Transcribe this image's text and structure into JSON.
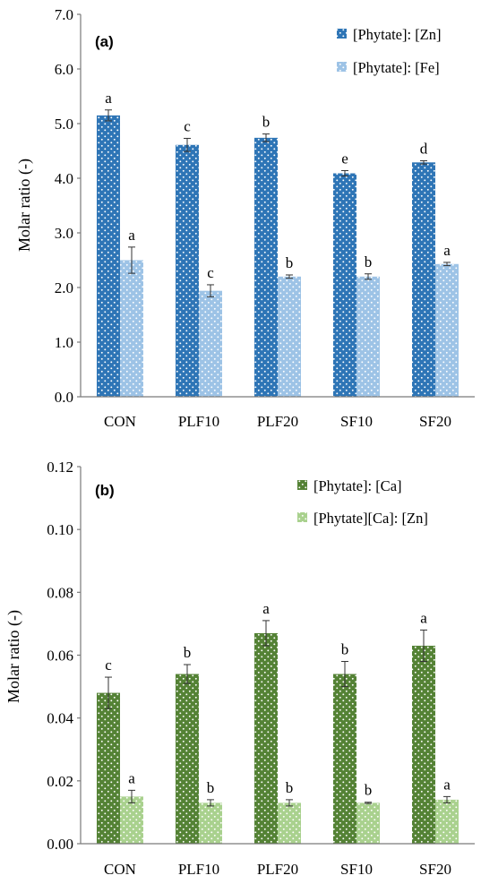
{
  "colors": {
    "zn": "#2e75b6",
    "fe": "#9dc3e6",
    "ca": "#548235",
    "caZn": "#a9d18e"
  },
  "chart_data": [
    {
      "type": "bar",
      "panel_label": "(a)",
      "ylabel": "Molar ratio (-)",
      "ylim": [
        0,
        7
      ],
      "yticks": [
        "0.0",
        "1.0",
        "2.0",
        "3.0",
        "4.0",
        "5.0",
        "6.0",
        "7.0"
      ],
      "categories": [
        "CON",
        "PLF10",
        "PLF20",
        "SF10",
        "SF20"
      ],
      "legend_position": "top-right",
      "series": [
        {
          "name": "[Phytate]: [Zn]",
          "color": "#2e75b6",
          "values": [
            5.15,
            4.61,
            4.74,
            4.09,
            4.29
          ],
          "errors": [
            0.1,
            0.12,
            0.07,
            0.05,
            0.03
          ],
          "letters": [
            "a",
            "c",
            "b",
            "e",
            "d"
          ]
        },
        {
          "name": "[Phytate]: [Fe]",
          "color": "#9dc3e6",
          "values": [
            2.5,
            1.94,
            2.2,
            2.2,
            2.43
          ],
          "errors": [
            0.24,
            0.11,
            0.03,
            0.05,
            0.03
          ],
          "letters": [
            "a",
            "c",
            "b",
            "b",
            "a"
          ]
        }
      ]
    },
    {
      "type": "bar",
      "panel_label": "(b)",
      "ylabel": "Molar ratio (-)",
      "ylim": [
        0,
        0.12
      ],
      "yticks": [
        "0.00",
        "0.02",
        "0.04",
        "0.06",
        "0.08",
        "0.10",
        "0.12"
      ],
      "categories": [
        "CON",
        "PLF10",
        "PLF20",
        "SF10",
        "SF20"
      ],
      "legend_position": "top-right",
      "series": [
        {
          "name": "[Phytate]: [Ca]",
          "color": "#548235",
          "values": [
            0.048,
            0.054,
            0.067,
            0.054,
            0.063
          ],
          "errors": [
            0.005,
            0.003,
            0.004,
            0.004,
            0.005
          ],
          "letters": [
            "c",
            "b",
            "a",
            "b",
            "a"
          ]
        },
        {
          "name": "[Phytate][Ca]: [Zn]",
          "color": "#a9d18e",
          "values": [
            0.015,
            0.013,
            0.013,
            0.013,
            0.014
          ],
          "errors": [
            0.002,
            0.001,
            0.001,
            0.0002,
            0.001
          ],
          "letters": [
            "a",
            "b",
            "b",
            "b",
            "a"
          ]
        }
      ]
    }
  ]
}
